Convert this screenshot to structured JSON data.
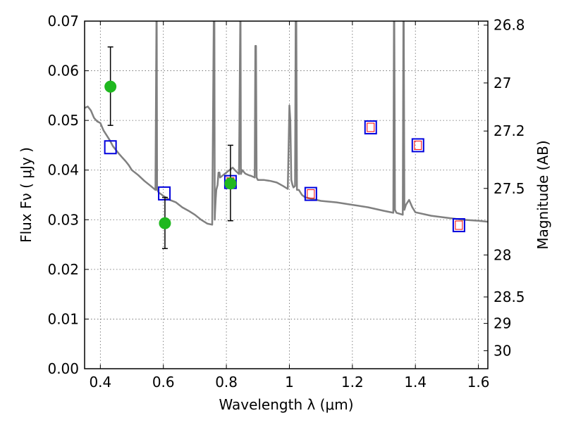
{
  "chart_data": {
    "type": "scatter",
    "xlabel": "Wavelength  λ (μm)",
    "ylabel": "Flux  Fν  ( μJy )",
    "y2label": "Magnitude (AB)",
    "xlim": [
      0.35,
      1.63
    ],
    "ylim": [
      0.0,
      0.07
    ],
    "grid": true,
    "x_ticks": [
      0.4,
      0.6,
      0.8,
      1.0,
      1.2,
      1.4,
      1.6
    ],
    "x_tick_labels": [
      "0.4",
      "0.6",
      "0.8",
      "1",
      "1.2",
      "1.4",
      "1.6"
    ],
    "y_ticks": [
      0.0,
      0.01,
      0.02,
      0.03,
      0.04,
      0.05,
      0.06,
      0.07
    ],
    "y_tick_labels": [
      "0.00",
      "0.01",
      "0.02",
      "0.03",
      "0.04",
      "0.05",
      "0.06",
      "0.07"
    ],
    "y2_ticks": [
      26.8,
      27.0,
      27.2,
      27.5,
      28.0,
      28.5,
      29.0,
      30.0
    ],
    "y2_tick_labels": [
      "26.8",
      "27",
      "27.2",
      "27.5",
      "28",
      "28.5",
      "29",
      "30"
    ],
    "colors": {
      "model": "#808080",
      "observed": "#1fb81f",
      "model_box": "#0000dd",
      "model_inner": "#ff0000",
      "error_bar": "#000000",
      "grid": "#666666"
    },
    "series": [
      {
        "kind": "model_spectrum",
        "x": [
          0.35,
          0.36,
          0.37,
          0.38,
          0.39,
          0.4,
          0.41,
          0.42,
          0.43,
          0.44,
          0.45,
          0.46,
          0.47,
          0.48,
          0.49,
          0.5,
          0.52,
          0.54,
          0.56,
          0.575,
          0.578,
          0.579,
          0.58,
          0.581,
          0.585,
          0.6,
          0.62,
          0.64,
          0.66,
          0.68,
          0.7,
          0.72,
          0.74,
          0.755,
          0.76,
          0.762,
          0.763,
          0.764,
          0.766,
          0.768,
          0.772,
          0.775,
          0.778,
          0.78,
          0.79,
          0.8,
          0.81,
          0.82,
          0.83,
          0.84,
          0.844,
          0.845,
          0.846,
          0.848,
          0.85,
          0.86,
          0.87,
          0.88,
          0.89,
          0.892,
          0.894,
          0.896,
          0.9,
          0.92,
          0.94,
          0.96,
          0.98,
          0.995,
          1.0,
          1.003,
          1.006,
          1.01,
          1.013,
          1.018,
          1.02,
          1.022,
          1.024,
          1.03,
          1.04,
          1.05,
          1.1,
          1.15,
          1.2,
          1.25,
          1.3,
          1.33,
          1.332,
          1.333,
          1.335,
          1.34,
          1.36,
          1.362,
          1.363,
          1.365,
          1.37,
          1.38,
          1.39,
          1.4,
          1.45,
          1.5,
          1.55,
          1.6,
          1.63
        ],
        "y": [
          0.0525,
          0.0528,
          0.052,
          0.0505,
          0.0498,
          0.0495,
          0.048,
          0.047,
          0.046,
          0.0448,
          0.044,
          0.0432,
          0.0425,
          0.0418,
          0.041,
          0.04,
          0.039,
          0.0378,
          0.0368,
          0.036,
          0.07,
          0.07,
          0.036,
          0.036,
          0.0355,
          0.0348,
          0.034,
          0.0335,
          0.0325,
          0.0318,
          0.031,
          0.03,
          0.0292,
          0.029,
          0.07,
          0.07,
          0.03,
          0.0315,
          0.034,
          0.036,
          0.037,
          0.0395,
          0.0395,
          0.0385,
          0.039,
          0.0395,
          0.04,
          0.0405,
          0.0398,
          0.0392,
          0.07,
          0.07,
          0.0392,
          0.0395,
          0.04,
          0.0393,
          0.039,
          0.0388,
          0.0385,
          0.065,
          0.065,
          0.0385,
          0.038,
          0.038,
          0.0378,
          0.0375,
          0.0368,
          0.0362,
          0.053,
          0.05,
          0.038,
          0.037,
          0.0365,
          0.0368,
          0.07,
          0.07,
          0.036,
          0.036,
          0.035,
          0.0345,
          0.0338,
          0.0335,
          0.033,
          0.0325,
          0.0318,
          0.0314,
          0.07,
          0.07,
          0.032,
          0.0314,
          0.031,
          0.07,
          0.07,
          0.032,
          0.033,
          0.034,
          0.0325,
          0.0315,
          0.0308,
          0.0304,
          0.03,
          0.0298,
          0.0296
        ]
      },
      {
        "kind": "observed",
        "x": [
          0.432,
          0.605,
          0.813
        ],
        "y": [
          0.0568,
          0.0293,
          0.0373
        ],
        "yerr_low": [
          0.049,
          0.0242,
          0.0298
        ],
        "yerr_high": [
          0.0648,
          0.0345,
          0.045
        ]
      },
      {
        "kind": "model_photometry",
        "x": [
          0.432,
          0.603,
          0.813,
          1.068,
          1.258,
          1.408,
          1.538
        ],
        "y": [
          0.0446,
          0.0353,
          0.0376,
          0.0352,
          0.0486,
          0.045,
          0.0289
        ]
      },
      {
        "kind": "model_photometry_inner",
        "x": [
          0.813,
          1.068,
          1.258,
          1.408,
          1.538
        ],
        "y": [
          0.0376,
          0.0352,
          0.0486,
          0.045,
          0.0289
        ]
      }
    ]
  }
}
